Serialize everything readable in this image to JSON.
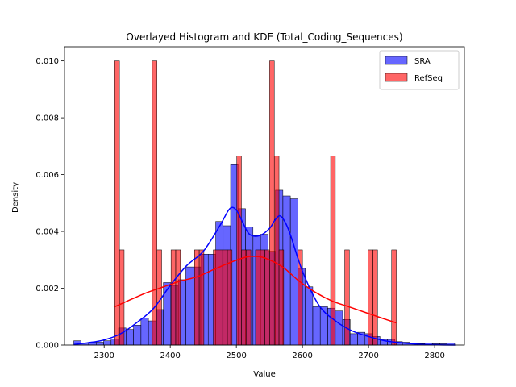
{
  "chart_data": {
    "type": "histogram",
    "title": "Overlayed Histogram and KDE (Total_Coding_Sequences)",
    "xlabel": "Value",
    "ylabel": "Density",
    "xlim": [
      2240,
      2845
    ],
    "ylim": [
      0,
      0.0105
    ],
    "x_ticks": [
      2300,
      2400,
      2500,
      2600,
      2700,
      2800
    ],
    "y_ticks": [
      0.0,
      0.002,
      0.004,
      0.006,
      0.008,
      0.01
    ],
    "y_tick_labels": [
      "0.000",
      "0.002",
      "0.004",
      "0.006",
      "0.008",
      "0.010"
    ],
    "legend_position": "top-right",
    "grid": false,
    "series": [
      {
        "name": "SRA",
        "color": "#0000ff",
        "line_color": "#0000ff",
        "bin_width": 11.3,
        "bins": [
          [
            2254.0,
            0.00015
          ],
          [
            2265.3,
            7e-05
          ],
          [
            2276.6,
            0.0001
          ],
          [
            2287.9,
            0.0001
          ],
          [
            2299.2,
            0.00015
          ],
          [
            2310.5,
            0.00022
          ],
          [
            2321.8,
            0.0006
          ],
          [
            2333.1,
            0.00055
          ],
          [
            2344.4,
            0.0007
          ],
          [
            2355.7,
            0.00095
          ],
          [
            2367.0,
            0.00085
          ],
          [
            2378.3,
            0.00125
          ],
          [
            2389.6,
            0.0022
          ],
          [
            2400.9,
            0.0021
          ],
          [
            2412.2,
            0.0023
          ],
          [
            2423.5,
            0.00275
          ],
          [
            2434.8,
            0.00275
          ],
          [
            2446.1,
            0.0032
          ],
          [
            2457.4,
            0.0032
          ],
          [
            2468.7,
            0.00435
          ],
          [
            2480.0,
            0.0042
          ],
          [
            2491.3,
            0.00635
          ],
          [
            2502.6,
            0.0048
          ],
          [
            2513.9,
            0.00415
          ],
          [
            2525.2,
            0.00385
          ],
          [
            2536.5,
            0.0039
          ],
          [
            2547.8,
            0.0033
          ],
          [
            2559.1,
            0.00545
          ],
          [
            2570.4,
            0.00525
          ],
          [
            2581.7,
            0.00515
          ],
          [
            2593.0,
            0.0027
          ],
          [
            2604.3,
            0.00205
          ],
          [
            2615.6,
            0.00135
          ],
          [
            2626.9,
            0.00135
          ],
          [
            2638.2,
            0.0013
          ],
          [
            2649.5,
            0.0012
          ],
          [
            2660.8,
            0.0009
          ],
          [
            2672.1,
            0.0004
          ],
          [
            2683.4,
            0.00045
          ],
          [
            2694.7,
            0.0004
          ],
          [
            2706.0,
            0.0003
          ],
          [
            2717.3,
            0.0002
          ],
          [
            2728.6,
            0.0002
          ],
          [
            2739.9,
            0.00012
          ],
          [
            2751.2,
            0.0001
          ],
          [
            2762.5,
            5e-05
          ],
          [
            2773.8,
            5e-05
          ],
          [
            2785.1,
            7e-05
          ],
          [
            2796.4,
            5e-05
          ],
          [
            2807.7,
            5e-05
          ],
          [
            2819.0,
            7e-05
          ]
        ],
        "kde_x": [
          2254,
          2275,
          2300,
          2325,
          2350,
          2375,
          2400,
          2425,
          2450,
          2475,
          2490,
          2500,
          2510,
          2520,
          2535,
          2550,
          2560,
          2568,
          2580,
          2600,
          2625,
          2650,
          2675,
          2700,
          2725,
          2750,
          2775,
          2800,
          2831
        ],
        "kde_y": [
          2e-05,
          8e-05,
          0.00018,
          0.0004,
          0.0008,
          0.0013,
          0.0021,
          0.0028,
          0.0033,
          0.0042,
          0.0048,
          0.00475,
          0.0043,
          0.0039,
          0.00385,
          0.0041,
          0.00445,
          0.00452,
          0.004,
          0.0026,
          0.0014,
          0.00085,
          0.0005,
          0.0003,
          0.00015,
          8e-05,
          3e-05,
          1e-05,
          0.0
        ]
      },
      {
        "name": "RefSeq",
        "color": "#ff0000",
        "line_color": "#ff0000",
        "bin_width": 7.1,
        "bins": [
          [
            2316.0,
            0.01
          ],
          [
            2323.1,
            0.00335
          ],
          [
            2330.2,
            0.0
          ],
          [
            2337.3,
            0.0
          ],
          [
            2344.4,
            0.0
          ],
          [
            2351.5,
            0.0
          ],
          [
            2358.6,
            0.0
          ],
          [
            2365.7,
            0.0
          ],
          [
            2372.8,
            0.01
          ],
          [
            2379.9,
            0.00335
          ],
          [
            2387.0,
            0.0
          ],
          [
            2394.1,
            0.0
          ],
          [
            2401.2,
            0.00335
          ],
          [
            2408.3,
            0.00335
          ],
          [
            2415.4,
            0.0
          ],
          [
            2422.5,
            0.0
          ],
          [
            2429.6,
            0.0
          ],
          [
            2436.7,
            0.00335
          ],
          [
            2443.8,
            0.00335
          ],
          [
            2450.9,
            0.0
          ],
          [
            2458.0,
            0.0
          ],
          [
            2465.1,
            0.00335
          ],
          [
            2472.2,
            0.00335
          ],
          [
            2479.3,
            0.00335
          ],
          [
            2486.4,
            0.00335
          ],
          [
            2493.5,
            0.0
          ],
          [
            2500.6,
            0.00665
          ],
          [
            2507.7,
            0.00335
          ],
          [
            2514.8,
            0.00335
          ],
          [
            2521.9,
            0.0
          ],
          [
            2529.0,
            0.00335
          ],
          [
            2536.1,
            0.00335
          ],
          [
            2543.2,
            0.00335
          ],
          [
            2550.3,
            0.01
          ],
          [
            2557.4,
            0.00665
          ],
          [
            2564.5,
            0.00335
          ],
          [
            2571.6,
            0.0
          ],
          [
            2578.7,
            0.0
          ],
          [
            2585.8,
            0.0
          ],
          [
            2592.9,
            0.00335
          ],
          [
            2600.0,
            0.0
          ],
          [
            2607.1,
            0.0
          ],
          [
            2614.2,
            0.0
          ],
          [
            2621.3,
            0.0
          ],
          [
            2628.4,
            0.0
          ],
          [
            2635.5,
            0.0
          ],
          [
            2642.6,
            0.00665
          ],
          [
            2649.7,
            0.0
          ],
          [
            2656.8,
            0.0
          ],
          [
            2663.9,
            0.00335
          ],
          [
            2671.0,
            0.0
          ],
          [
            2678.1,
            0.0
          ],
          [
            2685.2,
            0.0
          ],
          [
            2692.3,
            0.0
          ],
          [
            2699.4,
            0.00335
          ],
          [
            2706.5,
            0.00335
          ],
          [
            2713.6,
            0.0
          ],
          [
            2720.7,
            0.0
          ],
          [
            2727.8,
            0.0
          ],
          [
            2734.9,
            0.00335
          ]
        ],
        "kde_x": [
          2316,
          2340,
          2365,
          2390,
          2415,
          2440,
          2465,
          2490,
          2515,
          2530,
          2545,
          2570,
          2595,
          2620,
          2645,
          2670,
          2695,
          2720,
          2742
        ],
        "kde_y": [
          0.00135,
          0.0016,
          0.00185,
          0.00205,
          0.00225,
          0.0024,
          0.00265,
          0.0029,
          0.0031,
          0.00312,
          0.00305,
          0.00275,
          0.00225,
          0.00185,
          0.00155,
          0.00135,
          0.00115,
          0.00095,
          0.00078
        ]
      }
    ]
  }
}
